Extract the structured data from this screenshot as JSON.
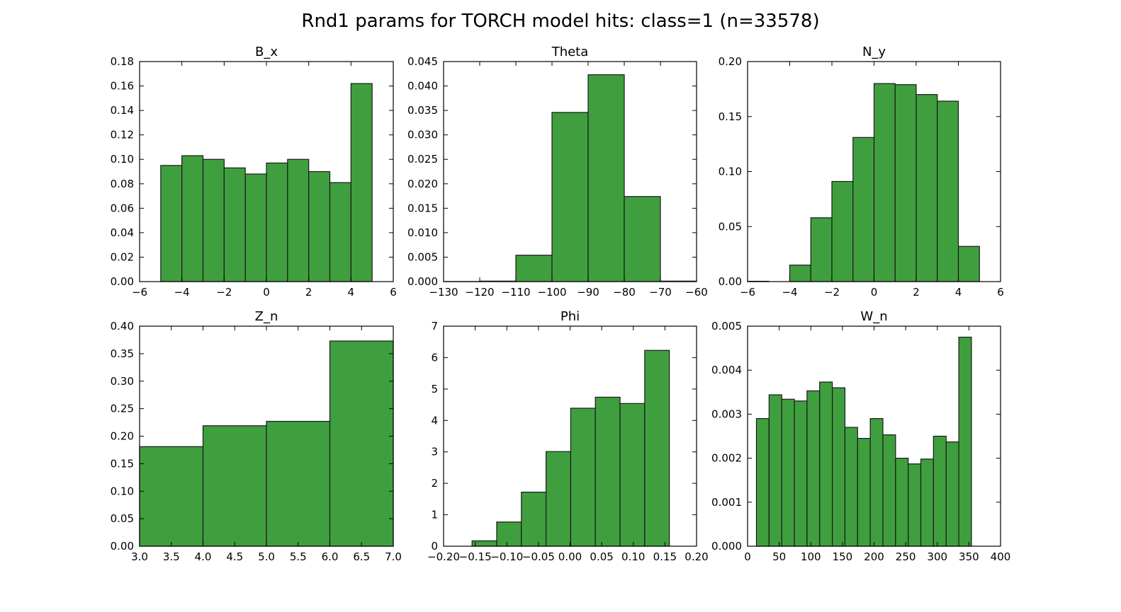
{
  "figure_title": "Rnd1 params for TORCH model hits: class=1 (n=33578)",
  "colors": {
    "bar_fill": "#3f9f3f",
    "bar_stroke": "#1a1a1a",
    "axes": "#000000"
  },
  "chart_data": [
    {
      "type": "bar",
      "title": "B_x",
      "xlim": [
        -6,
        6
      ],
      "ylim": [
        0,
        0.18
      ],
      "xticks": [
        -6,
        -4,
        -2,
        0,
        2,
        4,
        6
      ],
      "xtick_labels": [
        "−6",
        "−4",
        "−2",
        "0",
        "2",
        "4",
        "6"
      ],
      "yticks": [
        0,
        0.02,
        0.04,
        0.06,
        0.08,
        0.1,
        0.12,
        0.14,
        0.16,
        0.18
      ],
      "ytick_labels": [
        "0.00",
        "0.02",
        "0.04",
        "0.06",
        "0.08",
        "0.10",
        "0.12",
        "0.14",
        "0.16",
        "0.18"
      ],
      "bin_edges": [
        -5,
        -4,
        -3,
        -2,
        -1,
        0,
        1,
        2,
        3,
        4,
        5
      ],
      "values": [
        0.095,
        0.103,
        0.1,
        0.093,
        0.088,
        0.097,
        0.1,
        0.09,
        0.081,
        0.162
      ]
    },
    {
      "type": "bar",
      "title": "Theta",
      "xlim": [
        -130,
        -60
      ],
      "ylim": [
        0,
        0.045
      ],
      "xticks": [
        -130,
        -120,
        -110,
        -100,
        -90,
        -80,
        -70,
        -60
      ],
      "xtick_labels": [
        "−130",
        "−120",
        "−110",
        "−100",
        "−90",
        "−80",
        "−70",
        "−60"
      ],
      "yticks": [
        0,
        0.005,
        0.01,
        0.015,
        0.02,
        0.025,
        0.03,
        0.035,
        0.04,
        0.045
      ],
      "ytick_labels": [
        "0.000",
        "0.005",
        "0.010",
        "0.015",
        "0.020",
        "0.025",
        "0.030",
        "0.035",
        "0.040",
        "0.045"
      ],
      "bin_edges": [
        -130,
        -120,
        -110,
        -100,
        -90,
        -80,
        -70,
        -60
      ],
      "values": [
        2e-05,
        0.0001,
        0.0054,
        0.0346,
        0.0423,
        0.0174,
        0.0001
      ]
    },
    {
      "type": "bar",
      "title": "N_y",
      "xlim": [
        -6,
        6
      ],
      "ylim": [
        0,
        0.2
      ],
      "xticks": [
        -6,
        -4,
        -2,
        0,
        2,
        4,
        6
      ],
      "xtick_labels": [
        "−6",
        "−4",
        "−2",
        "0",
        "2",
        "4",
        "6"
      ],
      "yticks": [
        0,
        0.05,
        0.1,
        0.15,
        0.2
      ],
      "ytick_labels": [
        "0.00",
        "0.05",
        "0.10",
        "0.15",
        "0.20"
      ],
      "bin_edges": [
        -6,
        -5,
        -4,
        -3,
        -2,
        -1,
        0,
        1,
        2,
        3,
        4,
        5
      ],
      "values": [
        0.0003,
        0.0,
        0.015,
        0.058,
        0.091,
        0.131,
        0.18,
        0.179,
        0.17,
        0.164,
        0.032
      ]
    },
    {
      "type": "bar",
      "title": "Z_n",
      "xlim": [
        3.0,
        7.0
      ],
      "ylim": [
        0,
        0.4
      ],
      "xticks": [
        3.0,
        3.5,
        4.0,
        4.5,
        5.0,
        5.5,
        6.0,
        6.5,
        7.0
      ],
      "xtick_labels": [
        "3.0",
        "3.5",
        "4.0",
        "4.5",
        "5.0",
        "5.5",
        "6.0",
        "6.5",
        "7.0"
      ],
      "yticks": [
        0,
        0.05,
        0.1,
        0.15,
        0.2,
        0.25,
        0.3,
        0.35,
        0.4
      ],
      "ytick_labels": [
        "0.00",
        "0.05",
        "0.10",
        "0.15",
        "0.20",
        "0.25",
        "0.30",
        "0.35",
        "0.40"
      ],
      "bin_edges": [
        3,
        4,
        5,
        6,
        7
      ],
      "values": [
        0.181,
        0.219,
        0.227,
        0.373
      ]
    },
    {
      "type": "bar",
      "title": "Phi",
      "xlim": [
        -0.2,
        0.2
      ],
      "ylim": [
        0,
        7
      ],
      "xticks": [
        -0.2,
        -0.15,
        -0.1,
        -0.05,
        0.0,
        0.05,
        0.1,
        0.15,
        0.2
      ],
      "xtick_labels": [
        "−0.20",
        "−0.15",
        "−0.10",
        "−0.05",
        "0.00",
        "0.05",
        "0.10",
        "0.15",
        "0.20"
      ],
      "yticks": [
        0,
        1,
        2,
        3,
        4,
        5,
        6,
        7
      ],
      "ytick_labels": [
        "0",
        "1",
        "2",
        "3",
        "4",
        "5",
        "6",
        "7"
      ],
      "bin_edges": [
        -0.155,
        -0.116,
        -0.077,
        -0.038,
        0.001,
        0.04,
        0.079,
        0.118,
        0.157
      ],
      "values": [
        0.17,
        0.77,
        1.72,
        3.01,
        4.39,
        4.74,
        4.54,
        6.23
      ]
    },
    {
      "type": "bar",
      "title": "W_n",
      "xlim": [
        0,
        400
      ],
      "ylim": [
        0,
        0.005
      ],
      "xticks": [
        0,
        50,
        100,
        150,
        200,
        250,
        300,
        350,
        400
      ],
      "xtick_labels": [
        "0",
        "50",
        "100",
        "150",
        "200",
        "250",
        "300",
        "350",
        "400"
      ],
      "yticks": [
        0,
        0.001,
        0.002,
        0.003,
        0.004,
        0.005
      ],
      "ytick_labels": [
        "0.000",
        "0.001",
        "0.002",
        "0.003",
        "0.004",
        "0.005"
      ],
      "bin_edges": [
        14,
        34,
        54,
        74,
        94,
        114,
        134,
        154,
        174,
        194,
        214,
        234,
        254,
        274,
        294,
        314,
        334,
        354
      ],
      "values": [
        0.0029,
        0.00344,
        0.00334,
        0.0033,
        0.00353,
        0.00373,
        0.0036,
        0.0027,
        0.00245,
        0.0029,
        0.00253,
        0.002,
        0.00187,
        0.00198,
        0.0025,
        0.00237,
        0.00475
      ]
    }
  ]
}
